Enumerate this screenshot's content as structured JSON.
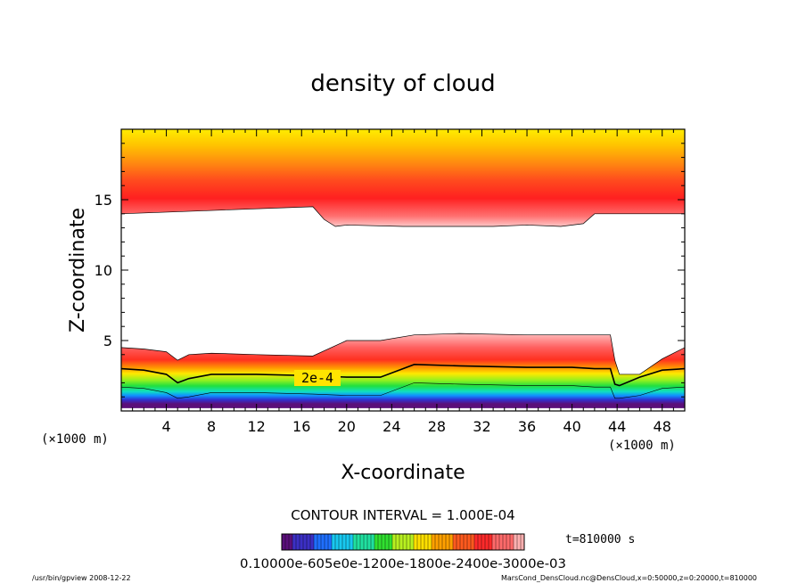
{
  "chart_data": {
    "type": "heatmap",
    "title": "density of cloud",
    "xlabel": "X-coordinate",
    "ylabel": "Z-coordinate",
    "x_unit_left": "(×1000 m)",
    "x_unit_right": "(×1000 m)",
    "xlim": [
      0,
      50
    ],
    "ylim": [
      0,
      20
    ],
    "x_ticks": [
      4,
      8,
      12,
      16,
      20,
      24,
      28,
      32,
      36,
      40,
      44,
      48
    ],
    "y_ticks": [
      5,
      10,
      15
    ],
    "contour_interval_text": "CONTOUR INTERVAL = 1.000E-04",
    "contour_label": "2e-4",
    "time_text": "t=810000 s",
    "colorbar_labels_text": "0.10000e-605e0e-1200e-1800e-2400e-3000e-03",
    "footer_left": "/usr/bin/gpview   2008-12-22",
    "footer_right": "MarsCond_DensCloud.nc@DensCloud,x=0:50000,z=0:20000,t=810000",
    "upper_layer": {
      "base_x": [
        0,
        17,
        18,
        19,
        20,
        25,
        33,
        36,
        39,
        41,
        42,
        43,
        50
      ],
      "base_z": [
        14.0,
        14.5,
        13.6,
        13.1,
        13.2,
        13.1,
        13.1,
        13.2,
        13.1,
        13.3,
        14.0,
        14.0,
        14.0
      ],
      "peak_z": 16.0,
      "top_z": 20
    },
    "lower_layer": {
      "x": [
        0,
        2,
        4,
        5,
        6,
        8,
        12,
        17,
        20,
        23,
        26,
        30,
        36,
        40,
        42,
        43.4,
        43.8,
        44.2,
        46,
        48,
        50
      ],
      "top_z": [
        4.5,
        4.4,
        4.2,
        3.6,
        4.0,
        4.1,
        4.0,
        3.9,
        5.0,
        5.0,
        5.4,
        5.5,
        5.4,
        5.4,
        5.4,
        5.4,
        3.6,
        2.6,
        2.6,
        3.7,
        4.5
      ],
      "contour_2e4_z": [
        3.0,
        2.9,
        2.6,
        2.0,
        2.3,
        2.6,
        2.6,
        2.5,
        2.4,
        2.4,
        3.3,
        3.2,
        3.1,
        3.1,
        3.0,
        3.0,
        1.9,
        1.8,
        2.4,
        2.9,
        3.0
      ],
      "bottom_z": 0.2
    },
    "colors": {
      "colormap": [
        "#5a0f7a",
        "#3b2fc4",
        "#1f6fff",
        "#18c8f0",
        "#20e0a0",
        "#30e030",
        "#b8f020",
        "#ffe000",
        "#ffa000",
        "#ff5a1e",
        "#ff2a2a",
        "#ff6a6a",
        "#ffb0b0"
      ],
      "background": "#ffffff"
    }
  }
}
